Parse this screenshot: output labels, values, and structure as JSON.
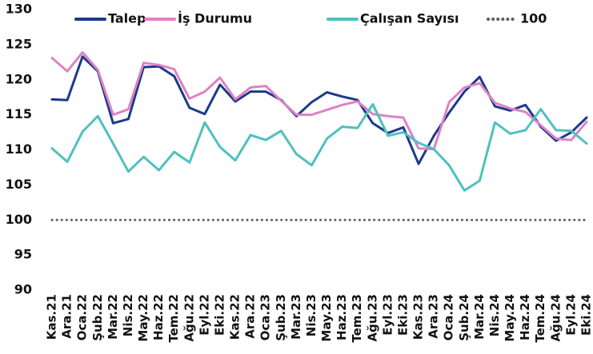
{
  "chart_data": {
    "type": "line",
    "categories": [
      "Kas.21",
      "Ara.21",
      "Oca.22",
      "Şub.22",
      "Mar.22",
      "Nis.22",
      "May.22",
      "Haz.22",
      "Tem.22",
      "Ağu.22",
      "Eyl.22",
      "Eki.22",
      "Kas.22",
      "Ara.22",
      "Oca.23",
      "Şub.23",
      "Mar.23",
      "Nis.23",
      "May.23",
      "Haz.23",
      "Tem.23",
      "Ağu.23",
      "Eyl.23",
      "Eki.23",
      "Kas.23",
      "Ara.23",
      "Oca.24",
      "Şub.24",
      "Mar.24",
      "Nis.24",
      "May.24",
      "Haz.24",
      "Tem.24",
      "Ağu.24",
      "Eyl.24",
      "Eki.24"
    ],
    "series": [
      {
        "name": "Talep",
        "color": "#1b3a8c",
        "values": [
          117.2,
          117.1,
          123.3,
          121.2,
          113.8,
          114.4,
          121.8,
          121.9,
          120.5,
          116,
          115.1,
          119.3,
          116.9,
          118.3,
          118.3,
          117.1,
          114.8,
          116.8,
          118.2,
          117.6,
          117.1,
          113.8,
          112.4,
          113.2,
          108,
          112,
          115.3,
          118.3,
          120.4,
          116.2,
          115.6,
          116.4,
          113.3,
          111.3,
          112.5,
          114.6
        ]
      },
      {
        "name": "İş Durumu",
        "color": "#de82c2",
        "values": [
          123.1,
          121.2,
          123.9,
          121.4,
          115,
          115.8,
          122.4,
          122.1,
          121.5,
          117.3,
          118.3,
          120.3,
          117.2,
          118.9,
          119.1,
          117,
          115,
          115,
          115.7,
          116.4,
          116.9,
          115.1,
          114.8,
          114.6,
          110.2,
          110.1,
          116.8,
          118.9,
          119.5,
          116.7,
          115.9,
          115.4,
          113.5,
          111.6,
          111.4,
          114
        ]
      },
      {
        "name": "Çalışan Sayısı",
        "color": "#4fc0c0",
        "values": [
          110.2,
          108.3,
          112.6,
          114.8,
          110.9,
          106.9,
          109,
          107.1,
          109.7,
          108.2,
          113.9,
          110.4,
          108.5,
          112.1,
          111.4,
          112.7,
          109.4,
          107.8,
          111.6,
          113.3,
          113.1,
          116.5,
          112,
          112.5,
          111,
          110.1,
          107.8,
          104.2,
          105.6,
          113.9,
          112.3,
          112.8,
          115.8,
          112.8,
          112.7,
          110.9
        ]
      },
      {
        "name": "100",
        "color": "#5a606b",
        "dash": "dotted",
        "values": [
          100,
          100,
          100,
          100,
          100,
          100,
          100,
          100,
          100,
          100,
          100,
          100,
          100,
          100,
          100,
          100,
          100,
          100,
          100,
          100,
          100,
          100,
          100,
          100,
          100,
          100,
          100,
          100,
          100,
          100,
          100,
          100,
          100,
          100,
          100,
          100
        ]
      }
    ],
    "ylim": [
      90,
      130
    ],
    "yticks": [
      90,
      95,
      100,
      105,
      110,
      115,
      120,
      125,
      130
    ],
    "legend": "top",
    "grid": false
  }
}
